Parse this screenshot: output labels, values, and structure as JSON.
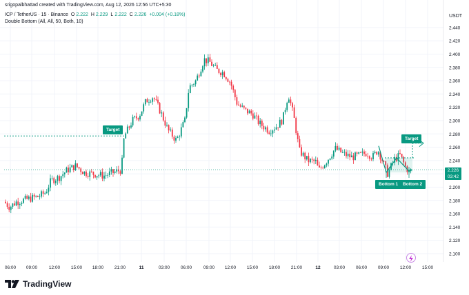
{
  "header": {
    "credit": "srigopalbhattad created with TradingView.com, Aug 12, 2026 12:56 UTC+5:30",
    "symbol": "ICP / TetherUS · 15 · Binance",
    "o_label": "O",
    "o_value": "2.222",
    "h_label": "H",
    "h_value": "2.229",
    "l_label": "L",
    "l_value": "2.222",
    "c_label": "C",
    "c_value": "2.226",
    "change": "+0.004 (+0.18%)",
    "indicator": "Double Bottom (All, All, 50, Both, 10)"
  },
  "price_axis": {
    "currency": "USDT",
    "ticks": [
      "2.440",
      "2.420",
      "2.400",
      "2.380",
      "2.360",
      "2.340",
      "2.320",
      "2.300",
      "2.280",
      "2.260",
      "2.240",
      "2.220",
      "2.200",
      "2.180",
      "2.160",
      "2.140",
      "2.120",
      "2.100"
    ]
  },
  "current_price": {
    "value": "2.226",
    "countdown": "03:42"
  },
  "time_axis": {
    "labels": [
      "06:00",
      "09:00",
      "12:00",
      "15:00",
      "18:00",
      "21:00",
      "11",
      "03:00",
      "06:00",
      "09:00",
      "12:00",
      "15:00",
      "18:00",
      "21:00",
      "12",
      "03:00",
      "06:00",
      "09:00",
      "12:00",
      "15:00"
    ]
  },
  "annotations": {
    "target_left": "Target",
    "target_right": "Target",
    "bottom1": "Bottom 1",
    "bottom2": "Bottom 2"
  },
  "colors": {
    "up": "#089981",
    "down": "#f23645",
    "grid": "#f0f3fa"
  },
  "branding": {
    "logo_text": "TradingView"
  },
  "icons": {
    "logo": "tradingview-logo-icon",
    "alert": "lightning-icon"
  }
}
